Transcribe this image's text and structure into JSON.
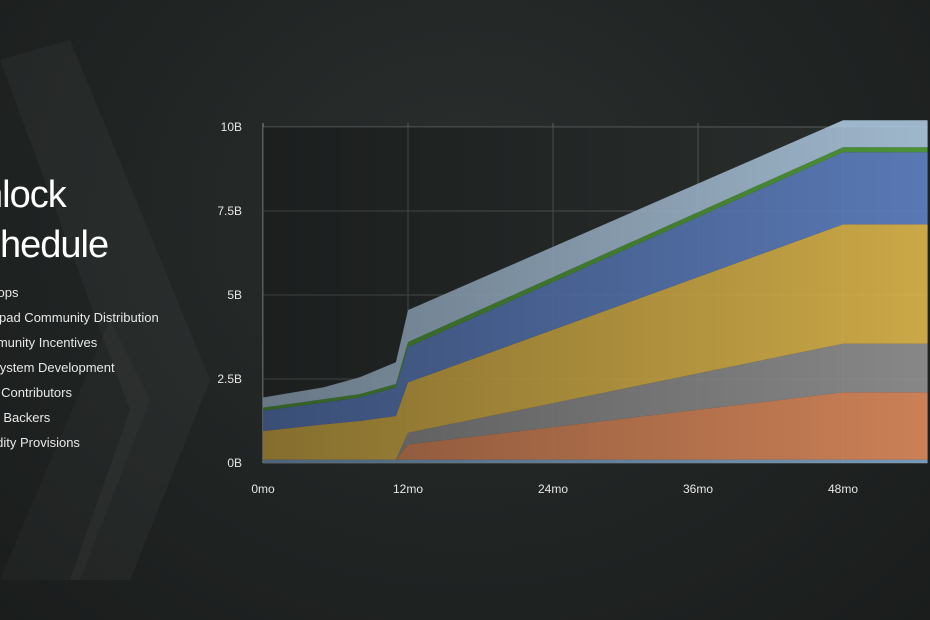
{
  "page": {
    "title_line1": "nlock",
    "title_line2": "chedule"
  },
  "legend": {
    "items": [
      "drops",
      "idlpad Community Distribution",
      "mmunity Incentives",
      "osystem Development",
      "re Contributors",
      "rly Backers",
      "uidity Provisions"
    ]
  },
  "colors": {
    "background": "#1e2221",
    "grid": "#5a605f"
  },
  "chart_data": {
    "type": "area",
    "stacked": true,
    "x": [
      0,
      5,
      8,
      10,
      11,
      12,
      48,
      55
    ],
    "xlim": [
      0,
      55
    ],
    "ylim": [
      0,
      10
    ],
    "xticks": [
      0,
      12,
      24,
      36,
      48
    ],
    "xtick_labels": [
      "0mo",
      "12mo",
      "24mo",
      "36mo",
      "48mo"
    ],
    "yticks": [
      0,
      2.5,
      5,
      7.5,
      10
    ],
    "ytick_labels": [
      "0B",
      "2.5B",
      "5B",
      "7.5B",
      "10B"
    ],
    "grid": true,
    "series": [
      {
        "color": "#7ea3c4",
        "values": [
          0.1,
          0.1,
          0.1,
          0.1,
          0.1,
          0.1,
          0.1,
          0.1
        ]
      },
      {
        "color": "#d9885a",
        "values": [
          0,
          0,
          0,
          0,
          0,
          0.45,
          2.0,
          2.0
        ]
      },
      {
        "color": "#8f8f8f",
        "values": [
          0,
          0,
          0,
          0,
          0,
          0.35,
          1.45,
          1.45
        ]
      },
      {
        "color": "#d9b34a",
        "values": [
          0.85,
          1.05,
          1.15,
          1.25,
          1.3,
          1.5,
          3.55,
          3.55
        ]
      },
      {
        "color": "#5d7fc0",
        "values": [
          0.6,
          0.65,
          0.7,
          0.8,
          0.85,
          1.05,
          2.15,
          2.15
        ]
      },
      {
        "color": "#4f9a3a",
        "values": [
          0.1,
          0.1,
          0.1,
          0.1,
          0.1,
          0.15,
          0.15,
          0.15
        ]
      },
      {
        "color": "#a9c3da",
        "values": [
          0.3,
          0.35,
          0.5,
          0.6,
          0.65,
          0.95,
          0.8,
          0.8
        ]
      }
    ]
  }
}
